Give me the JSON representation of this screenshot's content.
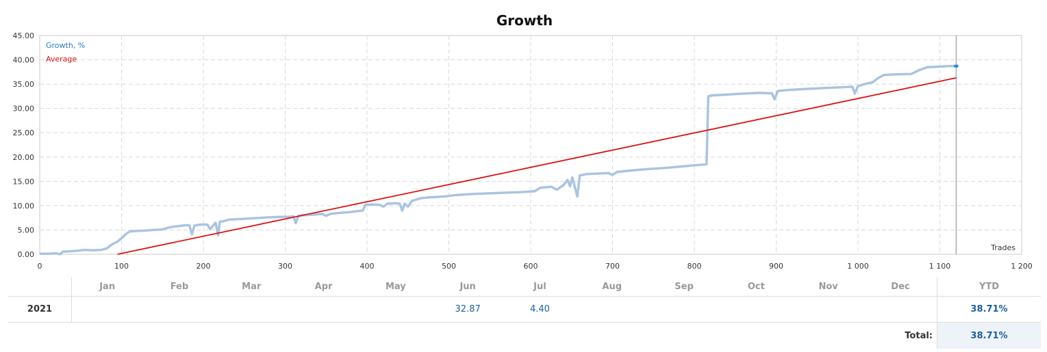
{
  "chart_data": {
    "type": "line",
    "title": "Growth",
    "xlabel": "Trades",
    "ylabel": "",
    "xlim": [
      0,
      1200
    ],
    "ylim": [
      0,
      45
    ],
    "x_ticks": [
      "0",
      "100",
      "200",
      "300",
      "400",
      "500",
      "600",
      "700",
      "800",
      "900",
      "1 000",
      "1 100",
      "1 200"
    ],
    "y_ticks": [
      "0.00",
      "5.00",
      "10.00",
      "15.00",
      "20.00",
      "25.00",
      "30.00",
      "35.00",
      "40.00",
      "45.00"
    ],
    "grid": true,
    "legend": "top-left",
    "end_marker_x": 1120,
    "series": [
      {
        "name": "Growth, %",
        "color": "#aac4e0",
        "legend_color": "#2a7ac0",
        "points": [
          [
            0,
            0.1
          ],
          [
            10,
            0.1
          ],
          [
            20,
            0.2
          ],
          [
            25,
            0.0
          ],
          [
            28,
            0.5
          ],
          [
            35,
            0.6
          ],
          [
            45,
            0.7
          ],
          [
            55,
            0.9
          ],
          [
            65,
            0.8
          ],
          [
            75,
            0.9
          ],
          [
            82,
            1.2
          ],
          [
            88,
            2.0
          ],
          [
            95,
            2.6
          ],
          [
            100,
            3.3
          ],
          [
            105,
            4.1
          ],
          [
            110,
            4.7
          ],
          [
            120,
            4.8
          ],
          [
            130,
            4.9
          ],
          [
            140,
            5.0
          ],
          [
            150,
            5.1
          ],
          [
            160,
            5.6
          ],
          [
            170,
            5.8
          ],
          [
            180,
            6.0
          ],
          [
            183,
            5.9
          ],
          [
            186,
            4.1
          ],
          [
            189,
            5.9
          ],
          [
            196,
            6.1
          ],
          [
            205,
            6.1
          ],
          [
            208,
            5.2
          ],
          [
            211,
            5.7
          ],
          [
            215,
            6.5
          ],
          [
            218,
            3.9
          ],
          [
            220,
            6.7
          ],
          [
            225,
            6.8
          ],
          [
            230,
            7.1
          ],
          [
            240,
            7.2
          ],
          [
            250,
            7.3
          ],
          [
            260,
            7.4
          ],
          [
            270,
            7.5
          ],
          [
            280,
            7.6
          ],
          [
            295,
            7.7
          ],
          [
            305,
            7.7
          ],
          [
            310,
            7.8
          ],
          [
            313,
            6.4
          ],
          [
            316,
            7.9
          ],
          [
            320,
            8.0
          ],
          [
            330,
            8.1
          ],
          [
            345,
            8.3
          ],
          [
            350,
            7.9
          ],
          [
            355,
            8.3
          ],
          [
            365,
            8.5
          ],
          [
            375,
            8.6
          ],
          [
            385,
            8.8
          ],
          [
            395,
            9.0
          ],
          [
            398,
            10.2
          ],
          [
            405,
            10.2
          ],
          [
            415,
            10.2
          ],
          [
            420,
            9.8
          ],
          [
            425,
            10.4
          ],
          [
            435,
            10.5
          ],
          [
            440,
            10.4
          ],
          [
            443,
            9.0
          ],
          [
            446,
            10.4
          ],
          [
            450,
            9.8
          ],
          [
            455,
            11.0
          ],
          [
            465,
            11.5
          ],
          [
            475,
            11.7
          ],
          [
            485,
            11.8
          ],
          [
            495,
            11.9
          ],
          [
            510,
            12.2
          ],
          [
            530,
            12.4
          ],
          [
            560,
            12.6
          ],
          [
            590,
            12.8
          ],
          [
            605,
            13.0
          ],
          [
            612,
            13.7
          ],
          [
            625,
            13.9
          ],
          [
            632,
            13.3
          ],
          [
            640,
            14.2
          ],
          [
            645,
            15.3
          ],
          [
            648,
            14.0
          ],
          [
            651,
            15.8
          ],
          [
            654,
            13.8
          ],
          [
            657,
            11.9
          ],
          [
            660,
            16.2
          ],
          [
            668,
            16.5
          ],
          [
            680,
            16.6
          ],
          [
            695,
            16.7
          ],
          [
            700,
            16.3
          ],
          [
            705,
            16.9
          ],
          [
            720,
            17.2
          ],
          [
            740,
            17.5
          ],
          [
            760,
            17.7
          ],
          [
            780,
            18.0
          ],
          [
            800,
            18.3
          ],
          [
            815,
            18.5
          ],
          [
            817,
            32.5
          ],
          [
            822,
            32.7
          ],
          [
            835,
            32.8
          ],
          [
            855,
            33.0
          ],
          [
            880,
            33.2
          ],
          [
            895,
            33.1
          ],
          [
            898,
            31.9
          ],
          [
            902,
            33.6
          ],
          [
            915,
            33.8
          ],
          [
            935,
            34.0
          ],
          [
            960,
            34.2
          ],
          [
            985,
            34.4
          ],
          [
            993,
            34.5
          ],
          [
            996,
            33.1
          ],
          [
            1000,
            34.6
          ],
          [
            1008,
            35.0
          ],
          [
            1018,
            35.4
          ],
          [
            1025,
            36.3
          ],
          [
            1032,
            36.9
          ],
          [
            1045,
            37.0
          ],
          [
            1065,
            37.1
          ],
          [
            1075,
            37.9
          ],
          [
            1085,
            38.5
          ],
          [
            1100,
            38.6
          ],
          [
            1110,
            38.7
          ],
          [
            1120,
            38.71
          ]
        ]
      },
      {
        "name": "Average",
        "color": "#dd1111",
        "legend_color": "#dd1111",
        "points": [
          [
            95,
            0.0
          ],
          [
            1120,
            36.3
          ]
        ]
      }
    ]
  },
  "table": {
    "months": [
      "Jan",
      "Feb",
      "Mar",
      "Apr",
      "May",
      "Jun",
      "Jul",
      "Aug",
      "Sep",
      "Oct",
      "Nov",
      "Dec"
    ],
    "ytd_header": "YTD",
    "year": "2021",
    "month_values": {
      "Jun": "32.87",
      "Jul": "4.40"
    },
    "ytd_value": "38.71%",
    "total_label": "Total:",
    "total_value": "38.71%"
  }
}
